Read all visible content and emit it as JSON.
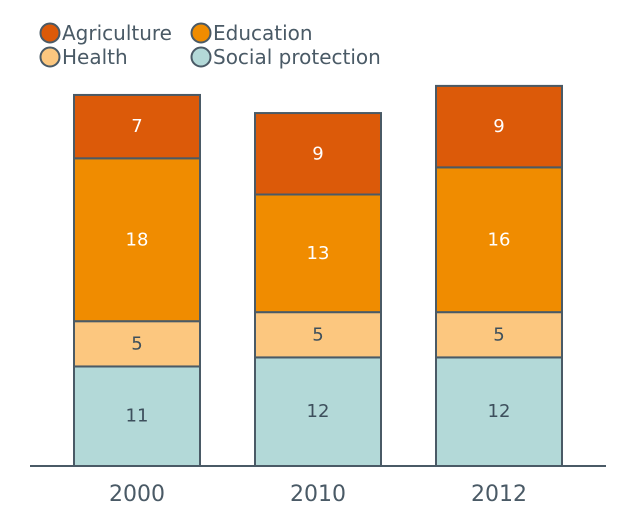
{
  "chart_data": {
    "type": "bar",
    "stacked": true,
    "categories": [
      "2000",
      "2010",
      "2012"
    ],
    "series": [
      {
        "name": "Social protection",
        "color": "#b3d9d8",
        "label_color": "#3d4f5c",
        "values": [
          11,
          12,
          12
        ]
      },
      {
        "name": "Health",
        "color": "#fcc77f",
        "label_color": "#3d4f5c",
        "values": [
          5,
          5,
          5
        ]
      },
      {
        "name": "Education",
        "color": "#f08c00",
        "label_color": "#ffffff",
        "values": [
          18,
          13,
          16
        ]
      },
      {
        "name": "Agriculture",
        "color": "#dc5a09",
        "label_color": "#ffffff",
        "values": [
          7,
          9,
          9
        ]
      }
    ],
    "legend": {
      "placement": "top-left",
      "order": [
        "Agriculture",
        "Education",
        "Health",
        "Social protection"
      ]
    },
    "title": "",
    "xlabel": "",
    "ylabel": "",
    "ylim": [
      0,
      42
    ],
    "grid": false,
    "axis_color": "#4a5a66",
    "bar_stroke": "#4a5a66"
  }
}
